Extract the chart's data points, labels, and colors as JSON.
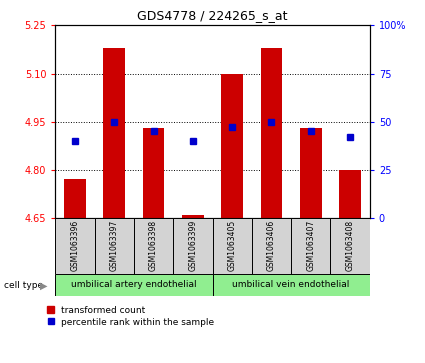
{
  "title": "GDS4778 / 224265_s_at",
  "samples": [
    "GSM1063396",
    "GSM1063397",
    "GSM1063398",
    "GSM1063399",
    "GSM1063405",
    "GSM1063406",
    "GSM1063407",
    "GSM1063408"
  ],
  "transformed_counts": [
    4.77,
    5.18,
    4.93,
    4.658,
    5.1,
    5.18,
    4.93,
    4.8
  ],
  "percentile_ranks": [
    40,
    50,
    45,
    40,
    47,
    50,
    45,
    42
  ],
  "bar_color": "#CC0000",
  "dot_color": "#0000CC",
  "left_ylim": [
    4.65,
    5.25
  ],
  "left_yticks": [
    4.65,
    4.8,
    4.95,
    5.1,
    5.25
  ],
  "right_ylim": [
    0,
    100
  ],
  "right_yticks": [
    0,
    25,
    50,
    75,
    100
  ],
  "right_yticklabels": [
    "0",
    "25",
    "50",
    "75",
    "100%"
  ],
  "group1_label": "umbilical artery endothelial",
  "group2_label": "umbilical vein endothelial",
  "group1_indices": [
    0,
    1,
    2,
    3
  ],
  "group2_indices": [
    4,
    5,
    6,
    7
  ],
  "cell_type_label": "cell type",
  "legend_bar_label": "transformed count",
  "legend_dot_label": "percentile rank within the sample",
  "bar_width": 0.55,
  "plot_bg_color": "#ffffff",
  "group_bg_color": "#90EE90",
  "sample_bg_color": "#d3d3d3",
  "fig_width": 4.25,
  "fig_height": 3.63,
  "dpi": 100
}
